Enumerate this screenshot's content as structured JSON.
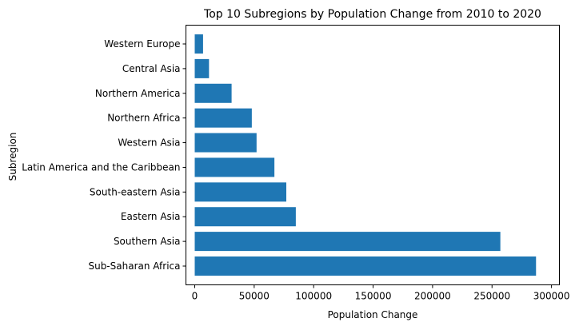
{
  "chart_data": {
    "type": "bar",
    "orientation": "horizontal",
    "title": "Top 10 Subregions by Population Change from 2010 to 2020",
    "xlabel": "Population Change",
    "ylabel": "Subregion",
    "xlim": [
      0,
      300000
    ],
    "xticks": [
      0,
      50000,
      100000,
      150000,
      200000,
      250000,
      300000
    ],
    "xtick_labels": [
      "0",
      "50000",
      "100000",
      "150000",
      "200000",
      "250000",
      "300000"
    ],
    "grid": false,
    "bar_color": "#1f77b4",
    "categories": [
      "Sub-Saharan Africa",
      "Southern Asia",
      "Eastern Asia",
      "South-eastern Asia",
      "Latin America and the Caribbean",
      "Western Asia",
      "Northern Africa",
      "Northern America",
      "Central Asia",
      "Western Europe"
    ],
    "values": [
      287000,
      257000,
      85000,
      77000,
      67000,
      52000,
      48000,
      31000,
      12000,
      7000
    ]
  }
}
